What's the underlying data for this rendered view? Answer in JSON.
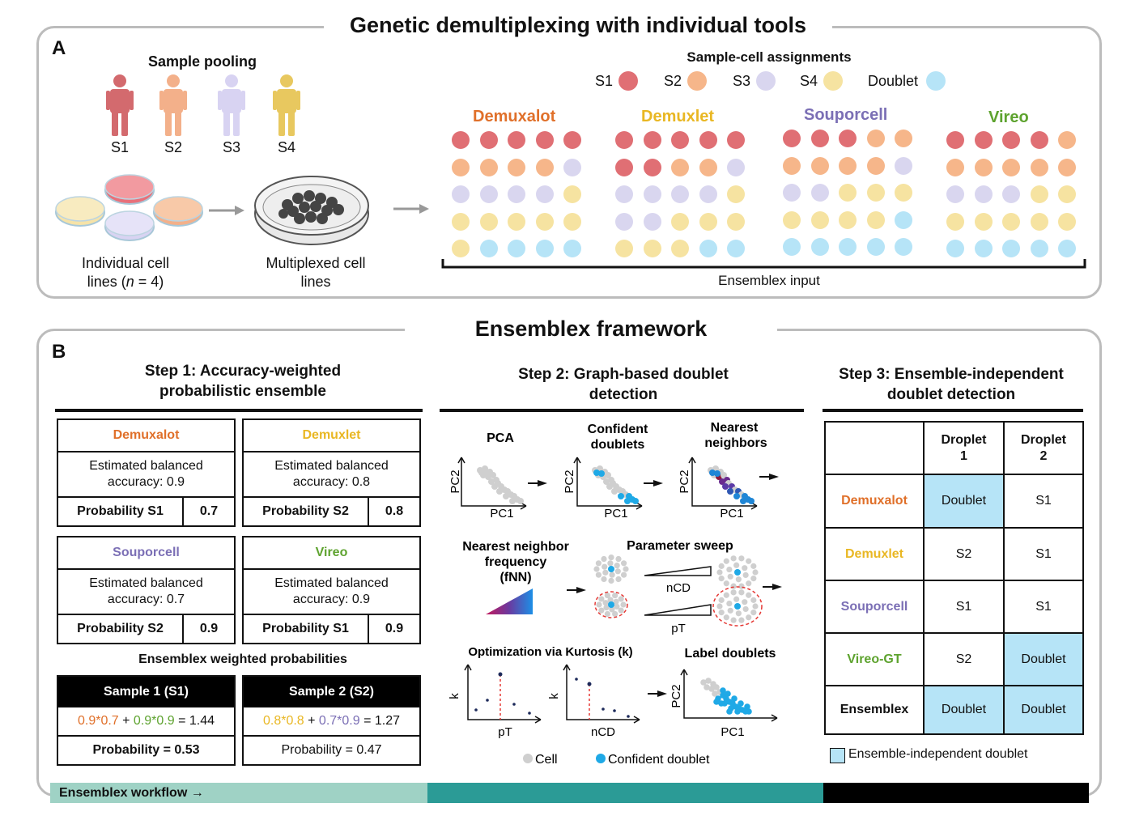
{
  "panelA": {
    "title": "Genetic demultiplexing with individual tools",
    "label": "A",
    "pooling_title": "Sample pooling",
    "samples": [
      "S1",
      "S2",
      "S3",
      "S4"
    ],
    "individual_caption_1": "Individual cell",
    "individual_caption_2a": "lines (",
    "individual_caption_n": "n",
    "individual_caption_2b": " = 4)",
    "multiplexed_caption_1": "Multiplexed cell",
    "multiplexed_caption_2": "lines",
    "assign_title": "Sample-cell assignments",
    "legend": [
      {
        "label": "S1",
        "color": "#e06f74"
      },
      {
        "label": "S2",
        "color": "#f6b68a"
      },
      {
        "label": "S3",
        "color": "#d9d6ef"
      },
      {
        "label": "S4",
        "color": "#f6e3a1"
      },
      {
        "label": "Doublet",
        "color": "#b6e4f7"
      }
    ],
    "tools": [
      {
        "name": "Demuxalot",
        "color": "#e0702a"
      },
      {
        "name": "Demuxlet",
        "color": "#e9b723"
      },
      {
        "name": "Souporcell",
        "color": "#7b6fb5"
      },
      {
        "name": "Vireo",
        "color": "#5ea32f"
      }
    ],
    "ensemblex_input": "Ensemblex input"
  },
  "panelB": {
    "title": "Ensemblex framework",
    "label": "B",
    "step1": {
      "title_1": "Step 1: Accuracy-weighted",
      "title_2": "probabilistic ensemble",
      "tools": [
        {
          "name": "Demuxalot",
          "acc_1": "Estimated balanced",
          "acc_2": "accuracy: 0.9",
          "prob_label": "Probability S1",
          "prob": "0.7"
        },
        {
          "name": "Demuxlet",
          "acc_1": "Estimated balanced",
          "acc_2": "accuracy: 0.8",
          "prob_label": "Probability S2",
          "prob": "0.8"
        },
        {
          "name": "Souporcell",
          "acc_1": "Estimated balanced",
          "acc_2": "accuracy: 0.7",
          "prob_label": "Probability S2",
          "prob": "0.9"
        },
        {
          "name": "Vireo",
          "acc_1": "Estimated balanced",
          "acc_2": "accuracy: 0.9",
          "prob_label": "Probability S1",
          "prob": "0.9"
        }
      ],
      "weighted_title": "Ensemblex weighted probabilities",
      "sample1_header": "Sample 1 (S1)",
      "sample1_term1": "0.9*0.7",
      "sample1_plus": " + ",
      "sample1_term2": "0.9*0.9",
      "sample1_result": " = 1.44",
      "sample1_prob": "Probability = 0.53",
      "sample2_header": "Sample 2 (S2)",
      "sample2_term1": "0.8*0.8",
      "sample2_plus": " + ",
      "sample2_term2": "0.7*0.9",
      "sample2_result": " = 1.27",
      "sample2_prob": "Probability = 0.47"
    },
    "step2": {
      "title_1": "Step 2: Graph-based doublet",
      "title_2": "detection",
      "pca": "PCA",
      "confident_1": "Confident",
      "confident_2": "doublets",
      "nearest_1": "Nearest",
      "nearest_2": "neighbors",
      "pc1": "PC1",
      "pc2": "PC2",
      "fnn_1": "Nearest neighbor",
      "fnn_2": "frequency",
      "fnn_3": "(fNN)",
      "sweep": "Parameter sweep",
      "ncd": "nCD",
      "pt": "pT",
      "opt": "Optimization via Kurtosis (k)",
      "k": "k",
      "label_doublets": "Label doublets",
      "legend_cell": "Cell",
      "legend_confident": "Confident doublet"
    },
    "step3": {
      "title_1": "Step 3: Ensemble-independent",
      "title_2": "doublet detection",
      "droplet1_1": "Droplet",
      "droplet1_2": "1",
      "droplet2_1": "Droplet",
      "droplet2_2": "2",
      "rows": [
        {
          "name": "Demuxalot",
          "d1": "Doublet",
          "d2": "S1"
        },
        {
          "name": "Demuxlet",
          "d1": "S2",
          "d2": "S1"
        },
        {
          "name": "Souporcell",
          "d1": "S1",
          "d2": "S1"
        },
        {
          "name": "Vireo-GT",
          "d1": "S2",
          "d2": "Doublet"
        },
        {
          "name": "Ensemblex",
          "d1": "Doublet",
          "d2": "Doublet"
        }
      ],
      "legend": "Ensemble-independent doublet"
    },
    "workflow": "Ensemblex workflow →"
  },
  "colors": {
    "s1": "#e06f74",
    "s2": "#f6b68a",
    "s3": "#d9d6ef",
    "s4": "#f6e3a1",
    "doublet": "#b6e4f7",
    "demuxalot": "#e0702a",
    "demuxlet": "#e9b723",
    "souporcell": "#7b6fb5",
    "vireo": "#5ea32f",
    "grey_cell": "#cfcfcf",
    "confident": "#1fa9e6"
  }
}
